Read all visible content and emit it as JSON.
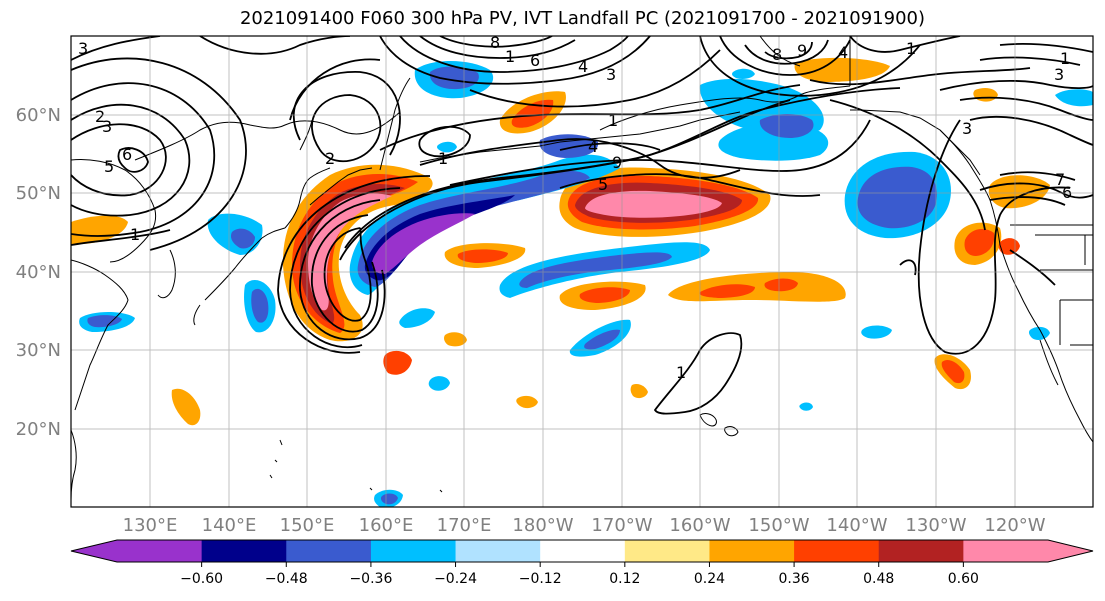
{
  "title": "2021091400 F060 300 hPa PV, IVT Landfall PC (2021091700 - 2021091900)",
  "lat_labels": [
    "60°N",
    "50°N",
    "40°N",
    "30°N",
    "20°N"
  ],
  "lon_labels": [
    "130°E",
    "140°E",
    "150°E",
    "160°E",
    "170°E",
    "180°W",
    "170°W",
    "160°W",
    "150°W",
    "140°W",
    "130°W",
    "120°W"
  ],
  "colorbar": {
    "levels": [
      -0.6,
      -0.48,
      -0.36,
      -0.24,
      -0.12,
      0.12,
      0.24,
      0.36,
      0.48,
      0.6
    ],
    "tick_labels": [
      "−0.60",
      "−0.48",
      "−0.36",
      "−0.24",
      "−0.12",
      "0.12",
      "0.24",
      "0.36",
      "0.48",
      "0.60"
    ],
    "colors": [
      "#9932cc",
      "#00008b",
      "#3a5bcf",
      "#00bfff",
      "#b0e2ff",
      "#ffffff",
      "#ffe987",
      "#ffa500",
      "#ff4000",
      "#b22222",
      "#ff88aa"
    ]
  },
  "contour_labels": [
    "3",
    "8",
    "1",
    "6",
    "4",
    "3",
    "8",
    "9",
    "4",
    "1",
    "3",
    "1",
    "2",
    "3",
    "6",
    "5",
    "1",
    "4",
    "9",
    "5",
    "2",
    "1",
    "1",
    "3",
    "6",
    "7",
    "1"
  ],
  "map": {
    "extent": "120°E–110°W, 10°N–70°N",
    "projection": "PlateCarree",
    "grid": true
  }
}
